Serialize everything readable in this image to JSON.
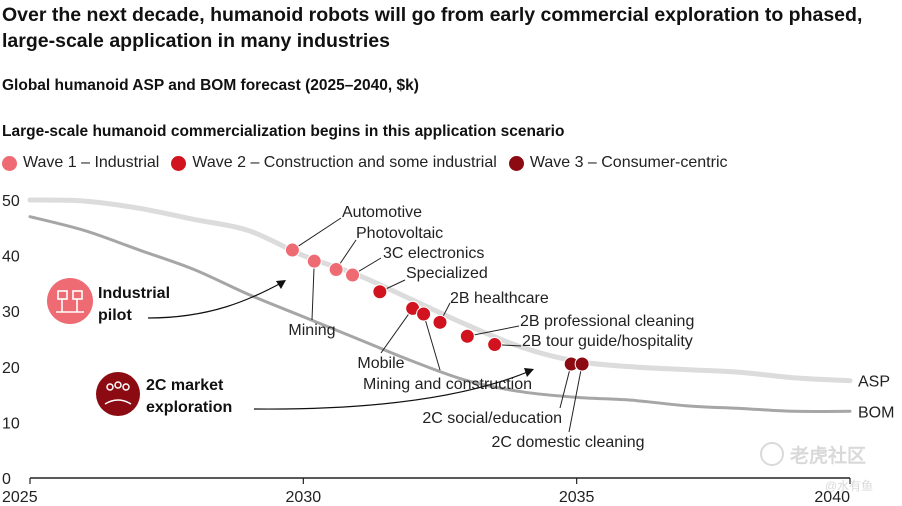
{
  "title": "Over the next decade, humanoid robots will go from early commercial exploration to phased, large-scale application in many industries",
  "subtitle": "Global humanoid ASP and BOM forecast (2025–2040, $k)",
  "scenario_heading": "Large-scale humanoid commercialization begins in this application scenario",
  "legend": [
    {
      "label": "Wave 1 – Industrial",
      "color": "#ef6b73"
    },
    {
      "label": "Wave 2 – Construction and some industrial",
      "color": "#d0131e"
    },
    {
      "label": "Wave 3 – Consumer-centric",
      "color": "#8c0b12"
    }
  ],
  "callouts": {
    "industrial": "Industrial pilot",
    "consumer": "2C market exploration"
  },
  "watermark": "老虎社区",
  "watermark_handle": "@水有鱼",
  "chart_data": {
    "type": "line",
    "xlim": [
      2025,
      2040
    ],
    "ylim": [
      0,
      50
    ],
    "x_ticks": [
      "2025",
      "2030",
      "2035",
      "2040"
    ],
    "y_ticks": [
      "0",
      "10",
      "20",
      "30",
      "40",
      "50"
    ],
    "grid": false,
    "series": [
      {
        "name": "ASP",
        "color": "#dcdcdc",
        "x": [
          2025,
          2026,
          2027,
          2028,
          2029,
          2030,
          2031,
          2032,
          2033,
          2034,
          2035,
          2036,
          2037,
          2038,
          2039,
          2040
        ],
        "y": [
          50,
          49.8,
          48.5,
          46.5,
          44.5,
          40,
          36.5,
          32,
          27.5,
          23.5,
          21,
          20,
          19.5,
          19,
          18,
          17.5
        ]
      },
      {
        "name": "BOM",
        "color": "#a6a6a6",
        "x": [
          2025,
          2026,
          2027,
          2028,
          2029,
          2030,
          2031,
          2032,
          2033,
          2034,
          2035,
          2036,
          2037,
          2038,
          2039,
          2040
        ],
        "y": [
          47,
          44.5,
          41,
          37.5,
          33,
          29,
          25,
          21,
          17.5,
          15.5,
          14.5,
          14,
          13,
          12.5,
          12,
          12
        ]
      }
    ],
    "points": [
      {
        "label": "Automotive",
        "wave": 1,
        "x": 2029.8,
        "y": 41
      },
      {
        "label": "Mining",
        "wave": 1,
        "x": 2030.2,
        "y": 39
      },
      {
        "label": "Photovoltaic",
        "wave": 1,
        "x": 2030.6,
        "y": 37.5
      },
      {
        "label": "3C electronics",
        "wave": 1,
        "x": 2030.9,
        "y": 36.5
      },
      {
        "label": "Specialized",
        "wave": 2,
        "x": 2031.4,
        "y": 33.5
      },
      {
        "label": "Mobile",
        "wave": 2,
        "x": 2032.0,
        "y": 30.5
      },
      {
        "label": "Mining and construction",
        "wave": 2,
        "x": 2032.2,
        "y": 29.5
      },
      {
        "label": "2B healthcare",
        "wave": 2,
        "x": 2032.5,
        "y": 28
      },
      {
        "label": "2B professional cleaning",
        "wave": 2,
        "x": 2033.0,
        "y": 25.5
      },
      {
        "label": "2B tour guide/hospitality",
        "wave": 2,
        "x": 2033.5,
        "y": 24
      },
      {
        "label": "2C social/education",
        "wave": 3,
        "x": 2034.9,
        "y": 20.5
      },
      {
        "label": "2C domestic cleaning",
        "wave": 3,
        "x": 2035.1,
        "y": 20.5
      }
    ]
  }
}
